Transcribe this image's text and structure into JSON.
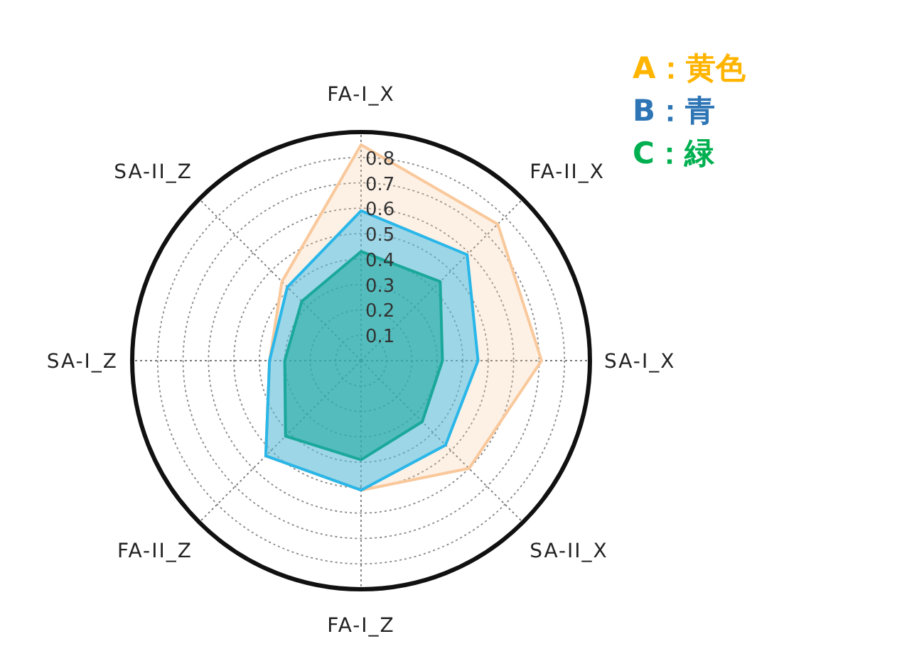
{
  "chart_data": {
    "type": "radar",
    "categories": [
      "FA-I_X",
      "FA-II_X",
      "SA-I_X",
      "SA-II_X",
      "FA-I_Z",
      "FA-II_Z",
      "SA-I_Z",
      "SA-II_Z"
    ],
    "ylim": [
      0,
      0.9
    ],
    "yticks": [
      0.1,
      0.2,
      0.3,
      0.4,
      0.5,
      0.6,
      0.7,
      0.8
    ],
    "grid": true,
    "legend": "top right",
    "series": [
      {
        "name": "A：黄色",
        "color": "#f9c89b",
        "values": [
          0.85,
          0.76,
          0.71,
          0.6,
          0.51,
          0.53,
          0.36,
          0.44
        ]
      },
      {
        "name": "B：青",
        "color": "#29b6e8",
        "values": [
          0.59,
          0.59,
          0.46,
          0.47,
          0.51,
          0.53,
          0.36,
          0.41
        ]
      },
      {
        "name": "C：緑",
        "color": "#1aa89a",
        "values": [
          0.43,
          0.44,
          0.32,
          0.34,
          0.39,
          0.42,
          0.3,
          0.33
        ]
      }
    ]
  }
}
